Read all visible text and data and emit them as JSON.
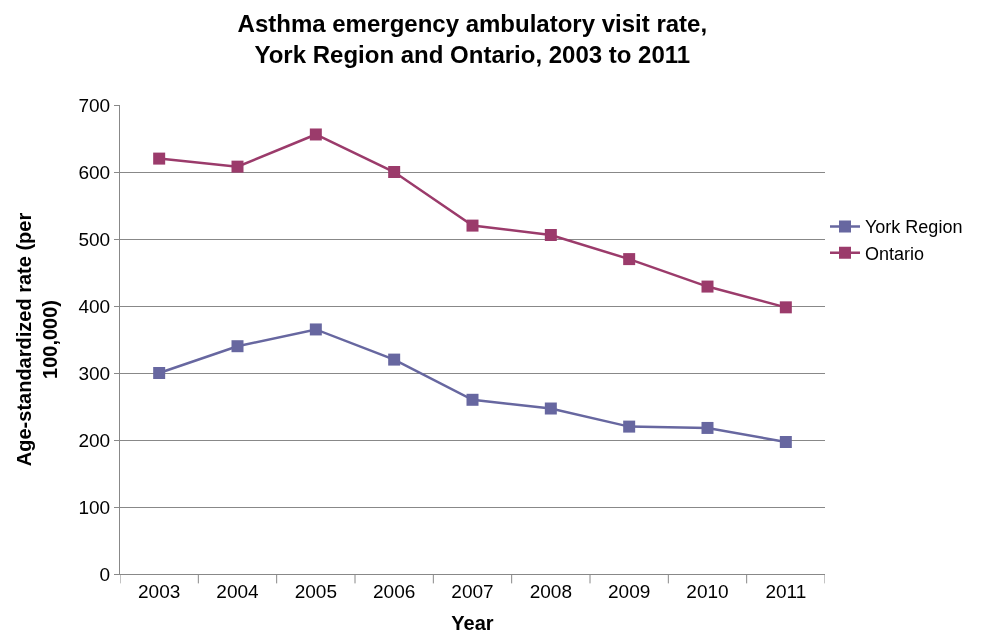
{
  "chart_data": {
    "type": "line",
    "title": "Asthma emergency ambulatory visit rate,\nYork Region and Ontario, 2003 to 2011",
    "xlabel": "Year",
    "ylabel": "Age-standardized rate (per\n100,000)",
    "categories": [
      "2003",
      "2004",
      "2005",
      "2006",
      "2007",
      "2008",
      "2009",
      "2010",
      "2011"
    ],
    "series": [
      {
        "name": "York Region",
        "color": "#6767a0",
        "values": [
          300,
          340,
          365,
          320,
          260,
          247,
          220,
          218,
          197
        ]
      },
      {
        "name": "Ontario",
        "color": "#9b3b6b",
        "values": [
          620,
          608,
          656,
          600,
          520,
          506,
          470,
          429,
          398
        ]
      }
    ],
    "ylim": [
      0,
      700
    ],
    "yticks": [
      0,
      100,
      200,
      300,
      400,
      500,
      600,
      700
    ],
    "grid": "y",
    "legend": "right",
    "marker": "square",
    "line_style": "solid"
  }
}
